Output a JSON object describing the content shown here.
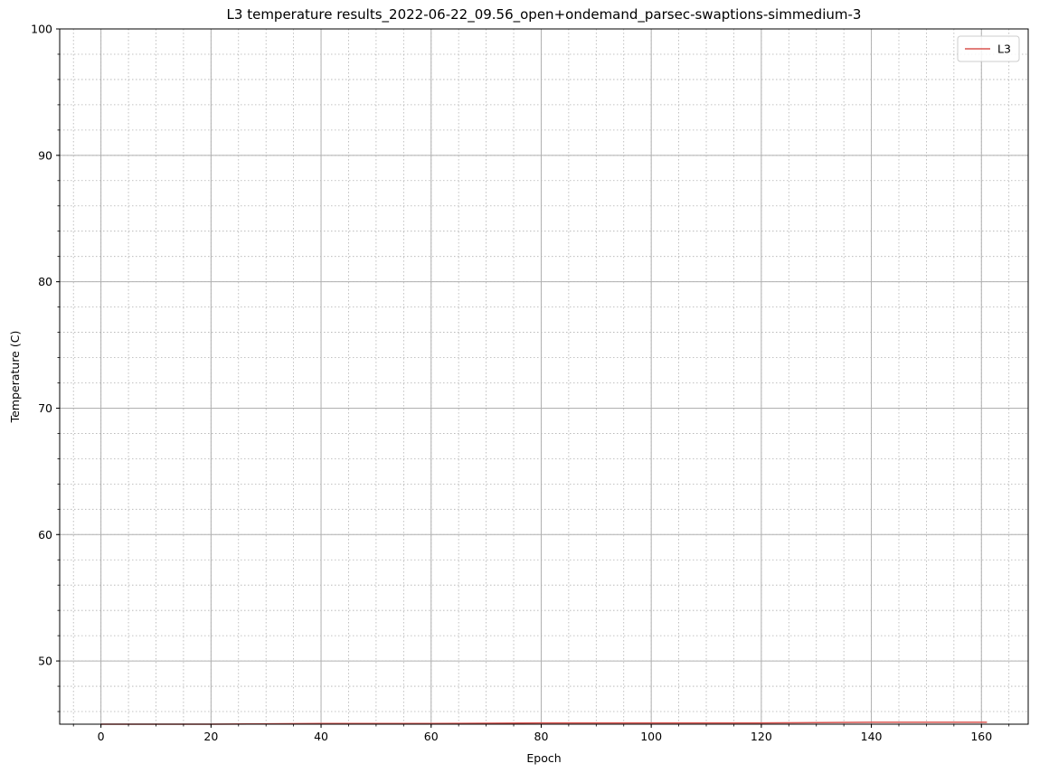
{
  "chart_data": {
    "type": "line",
    "title": "L3 temperature results_2022-06-22_09.56_open+ondemand_parsec-swaptions-simmedium-3",
    "xlabel": "Epoch",
    "ylabel": "Temperature (C)",
    "xlim": [
      -7.5,
      168.5
    ],
    "ylim": [
      45,
      100
    ],
    "xticks": [
      0,
      20,
      40,
      60,
      80,
      100,
      120,
      140,
      160
    ],
    "yticks": [
      50,
      60,
      70,
      80,
      90,
      100
    ],
    "x_minor_step": 5,
    "y_minor_step": 2,
    "grid": {
      "major": true,
      "minor": true
    },
    "legend_position": "top-right",
    "series": [
      {
        "name": "L3",
        "color": "#d9534f",
        "x": [
          0,
          20,
          40,
          60,
          80,
          100,
          120,
          140,
          161
        ],
        "y": [
          45.0,
          45.0,
          45.05,
          45.05,
          45.1,
          45.1,
          45.1,
          45.15,
          45.15
        ]
      }
    ]
  }
}
